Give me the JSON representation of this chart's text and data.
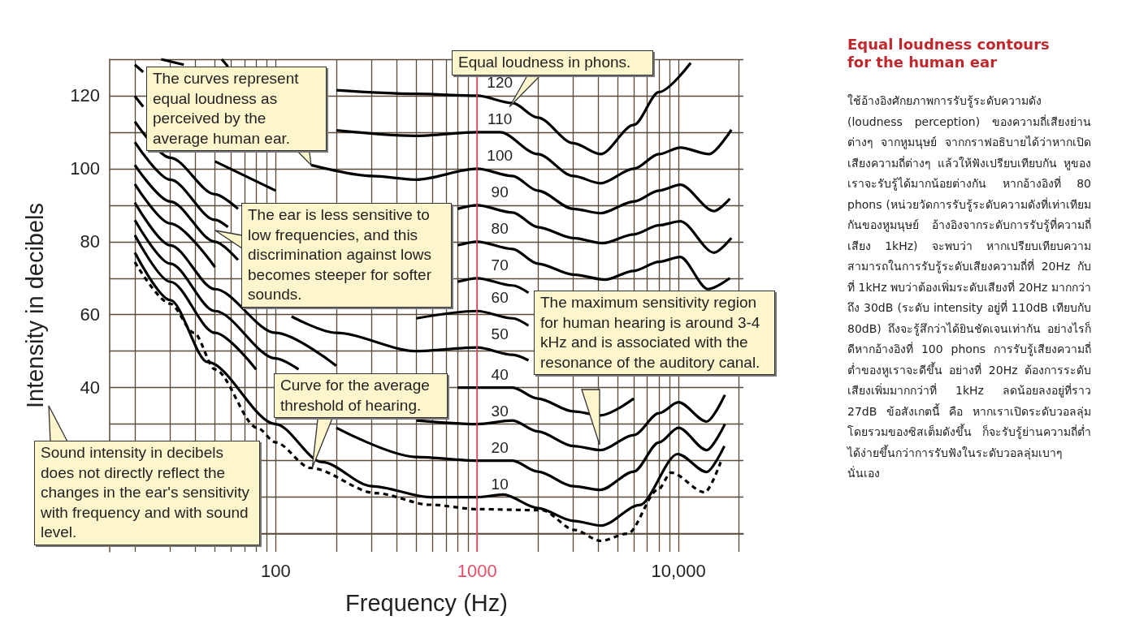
{
  "chart_data": {
    "type": "line",
    "title": "Equal loudness contours for the human ear",
    "subtitle": "ใช้อ้างอิงศักยภาพการรับรู้ระดับความดัง (loudness perception) ของความถี่เสียงย่านต่างๆ จากหูมนุษย์ จากกราฟอธิบายได้ว่าหากเปิดเสียงความถี่ต่างๆ แล้วให้ฟังเปรียบเทียบกัน หูของเราจะรับรู้ได้มากน้อยต่างกัน หากอ้างอิงที่ 80 phons (หน่วยวัดการรับรู้ระดับความดังที่เท่าเทียมกันของหูมนุษย์ อ้างอิงจากระดับการรับรู้ที่ความถี่เสียง 1kHz) จะพบว่า หากเปรียบเทียบความสามารถในการรับรู้ระดับเสียงความถี่ที่ 20Hz กับที่ 1kHz พบว่าต้องเพิ่มระดับเสียงที่ 20Hz มากกว่าถึง 30dB (ระดับ intensity อยู่ที่ 110dB เทียบกับ 80dB) ถึงจะรู้สึกว่าได้ยินชัดเจนเท่ากัน อย่างไรก็ดีหากอ้างอิงที่ 100 phons การรับรู้เสียงความถี่ต่ำของหูเราจะดีขึ้น อย่างที่ 20Hz ต้องการระดับเสียงเพิ่มมากกว่าที่ 1kHz ลดน้อยลงอยู่ที่ราว 27dB ข้อสังเกตนี้ คือ หากเราเปิดระดับวอลลุ่มโดยรวมของซิสเต็มดังขึ้น ก็จะรับรู้ย่านความถี่ต่ำได้ง่ายขึ้นกว่าการรับฟังในระดับวอลลุ่มเบาๆ นั่นเอง",
    "xlabel": "Frequency (Hz)",
    "ylabel": "Intensity in decibels",
    "log": "x",
    "grid": true,
    "legend": false,
    "marker": "none",
    "xlim": [
      15,
      21000
    ],
    "ylim": [
      -5,
      130
    ],
    "xticks": [
      {
        "value": 20,
        "label": null
      },
      {
        "value": 30,
        "label": null
      },
      {
        "value": 40,
        "label": null
      },
      {
        "value": 50,
        "label": null
      },
      {
        "value": 60,
        "label": null
      },
      {
        "value": 70,
        "label": null
      },
      {
        "value": 80,
        "label": null
      },
      {
        "value": 90,
        "label": null
      },
      {
        "value": 100,
        "label": "100"
      },
      {
        "value": 200,
        "label": null
      },
      {
        "value": 300,
        "label": null
      },
      {
        "value": 400,
        "label": null
      },
      {
        "value": 500,
        "label": null
      },
      {
        "value": 600,
        "label": null
      },
      {
        "value": 700,
        "label": null
      },
      {
        "value": 800,
        "label": null
      },
      {
        "value": 900,
        "label": null
      },
      {
        "value": 1000,
        "label": "1000"
      },
      {
        "value": 2000,
        "label": null
      },
      {
        "value": 3000,
        "label": null
      },
      {
        "value": 4000,
        "label": null
      },
      {
        "value": 5000,
        "label": null
      },
      {
        "value": 6000,
        "label": null
      },
      {
        "value": 7000,
        "label": null
      },
      {
        "value": 8000,
        "label": null
      },
      {
        "value": 9000,
        "label": null
      },
      {
        "value": 10000,
        "label": "10,000"
      },
      {
        "value": 20000,
        "label": null
      }
    ],
    "yticks": [
      {
        "value": 0,
        "label": null
      },
      {
        "value": 10,
        "label": null
      },
      {
        "value": 20,
        "label": null
      },
      {
        "value": 30,
        "label": null
      },
      40,
      {
        "value": 50,
        "label": null
      },
      60,
      {
        "value": 70,
        "label": null
      },
      80,
      {
        "value": 90,
        "label": null
      },
      100,
      {
        "value": 110,
        "label": null
      },
      120,
      {
        "value": 130,
        "label": null
      }
    ],
    "ref_lines": [
      {
        "axis": "x",
        "value": 1000,
        "color": "#e8506a"
      }
    ],
    "series": [
      {
        "color": "#000000",
        "line_style": "dashed",
        "x": [
          20,
          30,
          39.4,
          50,
          81,
          100,
          149,
          314,
          585,
          1000,
          2100,
          3050,
          4100,
          5600,
          7900,
          9200,
          13500,
          16200
        ],
        "values": [
          74.4,
          63,
          55,
          45,
          29,
          25,
          18,
          11.1,
          7.9,
          6.7,
          6.4,
          1,
          -2,
          0,
          12,
          16.7,
          11.3,
          19.6
        ]
      },
      {
        "name": "10",
        "color": "#000000",
        "x": [
          20,
          30,
          46,
          100,
          170,
          300,
          585,
          1000,
          1350,
          2000,
          3000,
          4140,
          6400,
          9900,
          13800,
          16900
        ],
        "values": [
          77,
          64,
          47,
          30,
          19.6,
          13,
          10,
          10,
          10.7,
          7,
          3.5,
          2.2,
          7.8,
          21.8,
          16.9,
          24
        ]
      },
      {
        "name": "20",
        "color": "#000000",
        "x": [
          20,
          30,
          50,
          80,
          100,
          200,
          500,
          1000,
          1500,
          2000,
          3000,
          4100,
          6000,
          8000,
          10000,
          13800,
          17000
        ],
        "values": [
          81.8,
          69,
          55,
          45,
          null,
          29,
          21,
          20,
          20,
          17,
          13,
          12,
          17,
          25,
          29,
          22.9,
          30
        ]
      },
      {
        "name": "30",
        "color": "#000000",
        "x": [
          20,
          30,
          50,
          100,
          130,
          200,
          500,
          1000,
          1500,
          2000,
          3000,
          4100,
          6000,
          8000,
          10000,
          13800,
          17000
        ],
        "values": [
          85.9,
          74,
          61,
          48,
          45,
          null,
          31,
          30,
          31,
          28,
          24,
          22.9,
          27,
          33,
          36,
          30.7,
          38
        ]
      },
      {
        "name": "40",
        "color": "#000000",
        "x": [
          20,
          30,
          50,
          100,
          200,
          500,
          800,
          1000,
          1500,
          2000,
          3000,
          4100,
          6000
        ],
        "values": [
          90.7,
          79,
          67,
          55,
          46,
          null,
          40,
          40,
          40,
          37,
          33.5,
          32.4,
          37
        ]
      },
      {
        "name": "50",
        "color": "#000000",
        "x": [
          20,
          30,
          50,
          100,
          120,
          200,
          500,
          1000,
          1500,
          1800
        ],
        "values": [
          95.8,
          85,
          73,
          null,
          59.5,
          55,
          50,
          51,
          49,
          47.5
        ]
      },
      {
        "name": "60",
        "color": "#000000",
        "x": [
          20,
          30,
          50,
          65,
          100,
          200,
          500,
          1000,
          1500,
          1800
        ],
        "values": [
          101,
          91,
          80,
          75,
          null,
          null,
          59,
          61,
          59,
          57
        ]
      },
      {
        "name": "70",
        "color": "#000000",
        "x": [
          20,
          30,
          50,
          58,
          100,
          200,
          500,
          800,
          1000,
          1500,
          1800
        ],
        "values": [
          107.3,
          97,
          86,
          84,
          null,
          null,
          null,
          69,
          70,
          68,
          66
        ]
      },
      {
        "name": "80",
        "color": "#000000",
        "x": [
          20,
          30,
          50,
          65,
          100,
          200,
          500,
          800,
          1000,
          1500,
          2000,
          3000,
          4300,
          6000,
          8000,
          10200,
          14000,
          18000
        ],
        "values": [
          112.9,
          103,
          93,
          89,
          null,
          null,
          null,
          79,
          80,
          78,
          74,
          71,
          69.6,
          72,
          74.5,
          75.8,
          67,
          70
        ]
      },
      {
        "name": "90",
        "color": "#000000",
        "x": [
          20,
          22,
          30,
          50,
          100,
          200,
          500,
          800,
          1000,
          1500,
          2000,
          3000,
          4200,
          6000,
          8000,
          10200,
          15000,
          18300
        ],
        "values": [
          119.9,
          117,
          null,
          102,
          94,
          null,
          null,
          89,
          90,
          88,
          84,
          81,
          79.6,
          82,
          84.5,
          85.6,
          77,
          81
        ]
      },
      {
        "name": "100",
        "color": "#000000",
        "x": [
          20,
          22,
          30,
          50,
          100,
          150,
          300,
          500,
          1000,
          1500,
          2000,
          3000,
          4100,
          6000,
          8000,
          10200,
          15000,
          18000
        ],
        "values": [
          128.5,
          126.5,
          null,
          null,
          null,
          101,
          98,
          97,
          100,
          98,
          94,
          89,
          87.8,
          91,
          94,
          95.6,
          88.4,
          91.8
        ]
      },
      {
        "name": "110",
        "color": "#000000",
        "x": [
          54,
          58,
          100,
          175,
          200,
          500,
          1000,
          1300,
          2000,
          3000,
          4100,
          6000,
          8000,
          10200,
          14200,
          18300
        ],
        "values": [
          130,
          128,
          null,
          null,
          110.5,
          109,
          110,
          110,
          104,
          98,
          96,
          100,
          104,
          105.8,
          104,
          110.7
        ]
      },
      {
        "name": "120",
        "color": "#000000",
        "x": [
          27,
          35,
          50,
          100,
          200,
          500,
          1000,
          1500,
          2000,
          3000,
          4100,
          6000,
          8000,
          11500
        ],
        "values": [
          130,
          128.5,
          null,
          null,
          121.5,
          120.5,
          120,
          118,
          114,
          107,
          104,
          112,
          121,
          129
        ]
      }
    ],
    "annotations": [
      {
        "text": "Equal loudness in phons.",
        "x": 1450,
        "y": 117
      },
      {
        "text": "The curves represent equal loudness as perceived by the average human ear.",
        "x": 150,
        "y": 101
      },
      "The ear is less sensitive to low frequencies, and this discrimination against lows becomes steeper for softer sounds.",
      "The maximum sensitivity region for  human hearing is around 3-4 kHz and is associated with the resonance of the auditory canal.",
      {
        "text": "Curve for the average threshold of hearing.",
        "x": 152,
        "y": 18
      },
      "Sound intensity in decibels does not directly reflect the changes in the ear's sensitivity with frequency and with sound level."
    ]
  }
}
